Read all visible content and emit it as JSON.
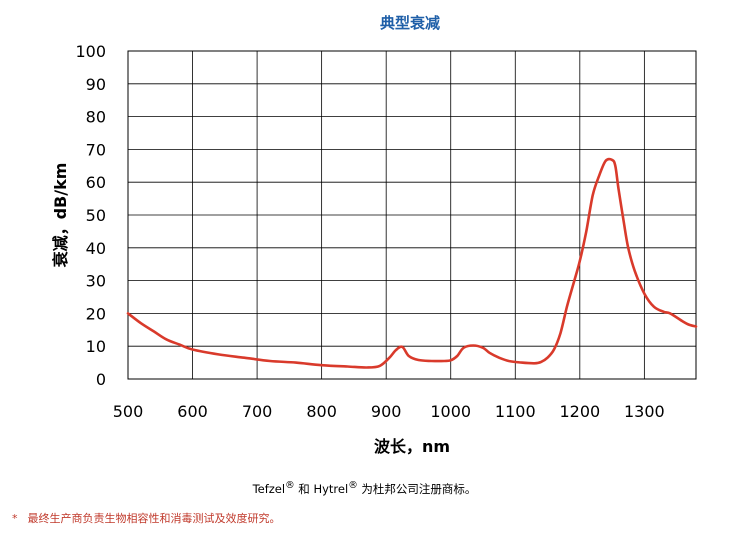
{
  "chart_data": {
    "type": "line",
    "title": "典型衰减",
    "xlabel": "波长，nm",
    "ylabel": "衰减，dB/km",
    "xlim": [
      500,
      1380
    ],
    "ylim": [
      0,
      100
    ],
    "xticks": [
      500,
      600,
      700,
      800,
      900,
      1000,
      1100,
      1200,
      1300
    ],
    "yticks": [
      0,
      10,
      20,
      30,
      40,
      50,
      60,
      70,
      80,
      90,
      100
    ],
    "grid": true,
    "series": [
      {
        "color": "#d93a2b",
        "x": [
          500,
          520,
          540,
          560,
          580,
          600,
          640,
          680,
          720,
          760,
          800,
          840,
          870,
          890,
          905,
          915,
          925,
          935,
          950,
          970,
          990,
          1000,
          1010,
          1020,
          1035,
          1050,
          1060,
          1075,
          1090,
          1110,
          1130,
          1140,
          1150,
          1160,
          1170,
          1180,
          1190,
          1200,
          1210,
          1220,
          1230,
          1240,
          1250,
          1255,
          1260,
          1268,
          1275,
          1285,
          1300,
          1315,
          1330,
          1340,
          1360,
          1370,
          1380
        ],
        "y": [
          20,
          17,
          14.5,
          12,
          10.5,
          9,
          7.5,
          6.5,
          5.5,
          5,
          4.2,
          3.8,
          3.5,
          4,
          6.5,
          8.8,
          9.8,
          7,
          5.8,
          5.5,
          5.5,
          5.7,
          7,
          9.5,
          10.2,
          9.5,
          8,
          6.5,
          5.5,
          5,
          4.8,
          5.2,
          6.5,
          9,
          14,
          22,
          29,
          36,
          45,
          56,
          62,
          66.5,
          66.8,
          65,
          58,
          48,
          40,
          33,
          26,
          22,
          20.5,
          20,
          17.5,
          16.5,
          16
        ]
      }
    ]
  },
  "notes": {
    "trademark_prefix": "Tefzel",
    "trademark_mid": " 和 Hytrel",
    "trademark_suffix": " 为杜邦公司注册商标。",
    "registered_symbol": "®",
    "footnote_marker": "*",
    "footnote_text": "最终生产商负责生物相容性和消毒测试及效度研究。"
  }
}
